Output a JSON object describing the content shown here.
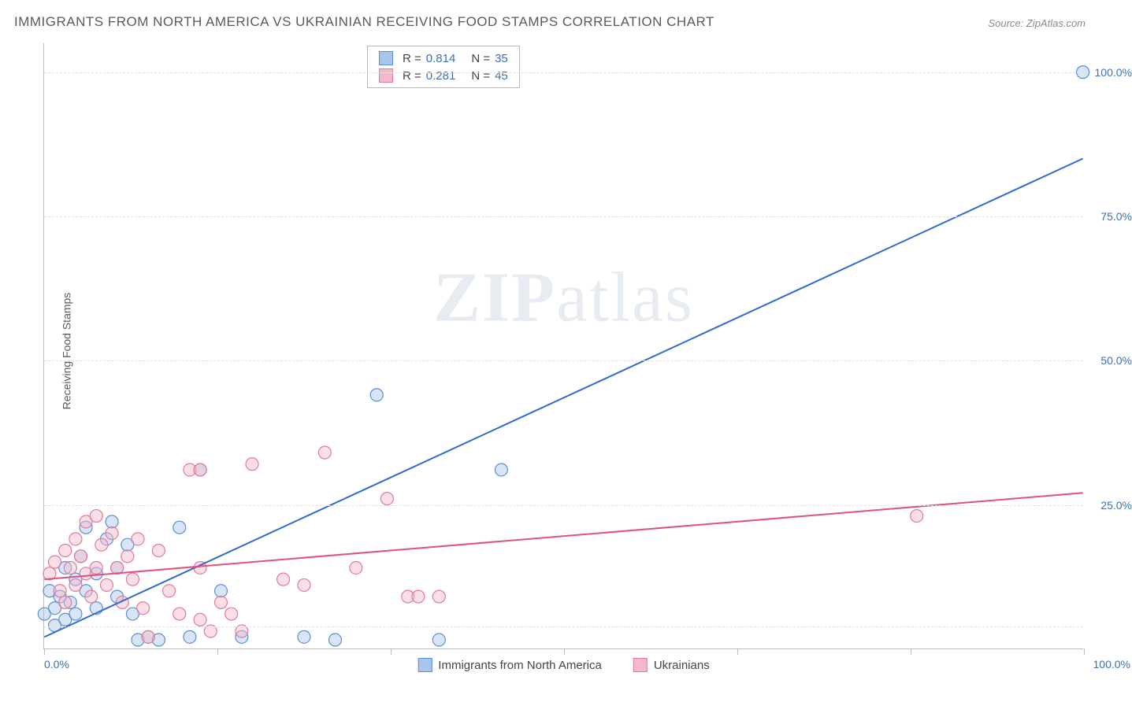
{
  "title": "IMMIGRANTS FROM NORTH AMERICA VS UKRAINIAN RECEIVING FOOD STAMPS CORRELATION CHART",
  "source": "Source: ZipAtlas.com",
  "y_axis_label": "Receiving Food Stamps",
  "watermark_a": "ZIP",
  "watermark_b": "atlas",
  "chart": {
    "type": "scatter",
    "xlim": [
      0,
      100
    ],
    "ylim": [
      0,
      105
    ],
    "x_tick_positions": [
      0,
      16.67,
      33.33,
      50,
      66.67,
      83.33,
      100
    ],
    "x_tick_labels": {
      "left": "0.0%",
      "right": "100.0%"
    },
    "y_gridlines": [
      4,
      25,
      50,
      75,
      100
    ],
    "y_tick_labels": {
      "25": "25.0%",
      "50": "50.0%",
      "75": "75.0%",
      "100": "100.0%"
    },
    "background_color": "#ffffff",
    "grid_color": "#e2e2e2",
    "axis_color": "#bdbdbd",
    "marker_radius": 8,
    "marker_opacity": 0.45,
    "line_width": 2,
    "series": [
      {
        "name": "Immigrants from North America",
        "color_fill": "#a8c6ec",
        "color_stroke": "#5a8fd0",
        "line_color": "#2e6bd0",
        "R": "0.814",
        "N": "35",
        "trend": {
          "x1": 0,
          "y1": 2,
          "x2": 100,
          "y2": 85
        },
        "points": [
          [
            0,
            6
          ],
          [
            0.5,
            10
          ],
          [
            1,
            7
          ],
          [
            1,
            4
          ],
          [
            1.5,
            9
          ],
          [
            2,
            14
          ],
          [
            2,
            5
          ],
          [
            2.5,
            8
          ],
          [
            3,
            12
          ],
          [
            3,
            6
          ],
          [
            3.5,
            16
          ],
          [
            4,
            10
          ],
          [
            4,
            21
          ],
          [
            5,
            13
          ],
          [
            5,
            7
          ],
          [
            6,
            19
          ],
          [
            6.5,
            22
          ],
          [
            7,
            14
          ],
          [
            7,
            9
          ],
          [
            8,
            18
          ],
          [
            8.5,
            6
          ],
          [
            9,
            1.5
          ],
          [
            10,
            2
          ],
          [
            11,
            1.5
          ],
          [
            13,
            21
          ],
          [
            14,
            2
          ],
          [
            15,
            31
          ],
          [
            17,
            10
          ],
          [
            19,
            2
          ],
          [
            25,
            2
          ],
          [
            28,
            1.5
          ],
          [
            32,
            44
          ],
          [
            38,
            1.5
          ],
          [
            44,
            31
          ],
          [
            100,
            100
          ]
        ]
      },
      {
        "name": "Ukrainians",
        "color_fill": "#f4b9c8",
        "color_stroke": "#e27a9a",
        "line_color": "#e0527c",
        "R": "0.281",
        "N": "45",
        "trend": {
          "x1": 0,
          "y1": 12,
          "x2": 100,
          "y2": 27
        },
        "points": [
          [
            0.5,
            13
          ],
          [
            1,
            15
          ],
          [
            1.5,
            10
          ],
          [
            2,
            17
          ],
          [
            2,
            8
          ],
          [
            2.5,
            14
          ],
          [
            3,
            19
          ],
          [
            3,
            11
          ],
          [
            3.5,
            16
          ],
          [
            4,
            13
          ],
          [
            4,
            22
          ],
          [
            4.5,
            9
          ],
          [
            5,
            23
          ],
          [
            5,
            14
          ],
          [
            5.5,
            18
          ],
          [
            6,
            11
          ],
          [
            6.5,
            20
          ],
          [
            7,
            14
          ],
          [
            7.5,
            8
          ],
          [
            8,
            16
          ],
          [
            8.5,
            12
          ],
          [
            9,
            19
          ],
          [
            9.5,
            7
          ],
          [
            10,
            2
          ],
          [
            11,
            17
          ],
          [
            12,
            10
          ],
          [
            13,
            6
          ],
          [
            14,
            31
          ],
          [
            15,
            14
          ],
          [
            15,
            5
          ],
          [
            16,
            3
          ],
          [
            17,
            8
          ],
          [
            18,
            6
          ],
          [
            19,
            3
          ],
          [
            20,
            32
          ],
          [
            23,
            12
          ],
          [
            25,
            11
          ],
          [
            27,
            34
          ],
          [
            30,
            14
          ],
          [
            33,
            26
          ],
          [
            35,
            9
          ],
          [
            36,
            9
          ],
          [
            38,
            9
          ],
          [
            84,
            23
          ],
          [
            15,
            31
          ]
        ]
      }
    ]
  },
  "legend": {
    "series1_label": "Immigrants from North America",
    "series2_label": "Ukrainians"
  },
  "stats_legend": {
    "r_label": "R =",
    "n_label": "N ="
  }
}
